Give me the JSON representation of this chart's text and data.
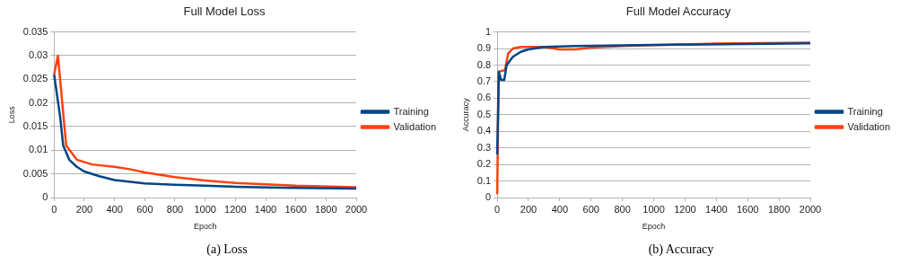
{
  "chart_data": [
    {
      "type": "line",
      "title": "Full Model Loss",
      "xlabel": "Epoch",
      "ylabel": "Loss",
      "xlim": [
        0,
        2000
      ],
      "xticks": [
        0,
        200,
        400,
        600,
        800,
        1000,
        1200,
        1400,
        1600,
        1800,
        2000
      ],
      "ylim": [
        0,
        0.035
      ],
      "yticks": [
        0,
        0.005,
        0.01,
        0.015,
        0.02,
        0.025,
        0.03,
        0.035
      ],
      "grid": "y",
      "legend": "right",
      "annotations": [
        "(a) Loss"
      ],
      "series": [
        {
          "name": "Training",
          "color": "#004586",
          "x": [
            0,
            40,
            60,
            100,
            150,
            200,
            300,
            400,
            600,
            800,
            1000,
            1200,
            1500,
            2000
          ],
          "values": [
            0.026,
            0.017,
            0.011,
            0.008,
            0.0065,
            0.0055,
            0.0045,
            0.0037,
            0.003,
            0.0027,
            0.0025,
            0.0023,
            0.0021,
            0.0019
          ]
        },
        {
          "name": "Validation",
          "color": "#ff420e",
          "x": [
            0,
            25,
            80,
            150,
            250,
            400,
            500,
            600,
            800,
            1000,
            1200,
            1400,
            1600,
            2000
          ],
          "values": [
            0.026,
            0.03,
            0.011,
            0.008,
            0.007,
            0.0065,
            0.006,
            0.0053,
            0.0043,
            0.0036,
            0.0031,
            0.0028,
            0.0025,
            0.0022
          ]
        }
      ]
    },
    {
      "type": "line",
      "title": "Full Model Accuracy",
      "xlabel": "Epoch",
      "ylabel": "Accuracy",
      "xlim": [
        0,
        2000
      ],
      "xticks": [
        0,
        200,
        400,
        600,
        800,
        1000,
        1200,
        1400,
        1600,
        1800,
        2000
      ],
      "ylim": [
        0,
        1
      ],
      "yticks": [
        0,
        0.1,
        0.2,
        0.3,
        0.4,
        0.5,
        0.6,
        0.7,
        0.8,
        0.9,
        1
      ],
      "grid": "y",
      "legend": "right",
      "annotations": [
        "(b) Accuracy"
      ],
      "series": [
        {
          "name": "Training",
          "color": "#004586",
          "x": [
            0,
            10,
            25,
            45,
            60,
            100,
            150,
            200,
            300,
            500,
            1000,
            2000
          ],
          "values": [
            0.26,
            0.76,
            0.71,
            0.71,
            0.8,
            0.85,
            0.88,
            0.895,
            0.91,
            0.915,
            0.922,
            0.932
          ]
        },
        {
          "name": "Validation",
          "color": "#ff420e",
          "x": [
            0,
            10,
            50,
            70,
            100,
            150,
            300,
            400,
            500,
            600,
            800,
            1000,
            1400,
            2000
          ],
          "values": [
            0.02,
            0.76,
            0.77,
            0.87,
            0.9,
            0.91,
            0.91,
            0.895,
            0.895,
            0.905,
            0.915,
            0.92,
            0.93,
            0.935
          ]
        }
      ]
    }
  ]
}
